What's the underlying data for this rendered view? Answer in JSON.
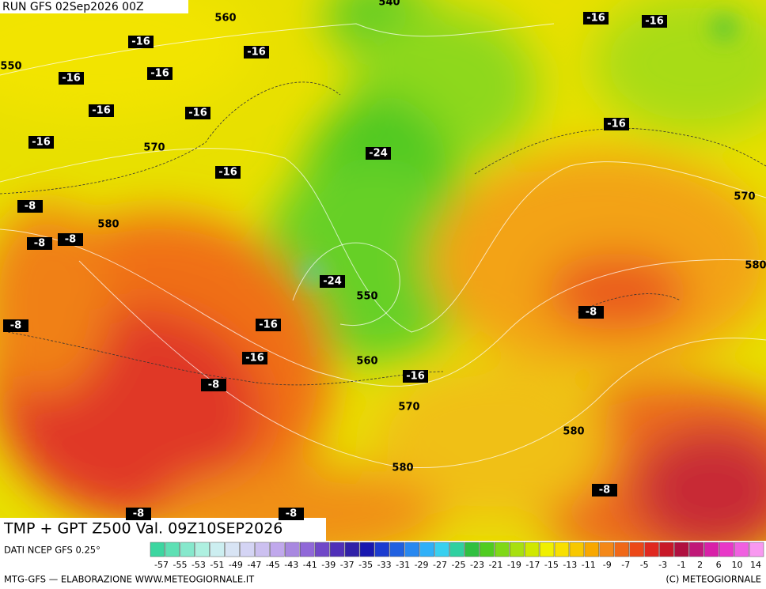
{
  "header": {
    "run": "RUN GFS 02Sep2026 00Z"
  },
  "map": {
    "contour_labels": [
      "540",
      "560",
      "550",
      "570",
      "580",
      "570",
      "580",
      "550",
      "560",
      "570",
      "580",
      "580"
    ],
    "isotherm_labels": [
      "-16",
      "-16",
      "-16",
      "-16",
      "-16",
      "-16",
      "-16",
      "-16",
      "-16",
      "-16",
      "-16",
      "-16",
      "-16",
      "-16",
      "-24",
      "-24",
      "-8",
      "-8",
      "-8",
      "-8",
      "-8",
      "-8",
      "-8",
      "-8",
      "-8"
    ]
  },
  "footer": {
    "title": "TMP + GPT Z500 Val. 09Z10SEP2026",
    "source": "DATI NCEP GFS 0.25°",
    "scale": [
      "-57",
      "-55",
      "-53",
      "-51",
      "-49",
      "-47",
      "-45",
      "-43",
      "-41",
      "-39",
      "-37",
      "-35",
      "-33",
      "-31",
      "-29",
      "-27",
      "-25",
      "-23",
      "-21",
      "-19",
      "-17",
      "-15",
      "-13",
      "-11",
      "-9",
      "-7",
      "-5",
      "-3",
      "-1",
      "2",
      "6",
      "10",
      "14"
    ],
    "credit": "MTG-GFS — ELABORAZIONE WWW.METEOGIORNALE.IT",
    "copyright": "(C) METEOGIORNALE"
  }
}
